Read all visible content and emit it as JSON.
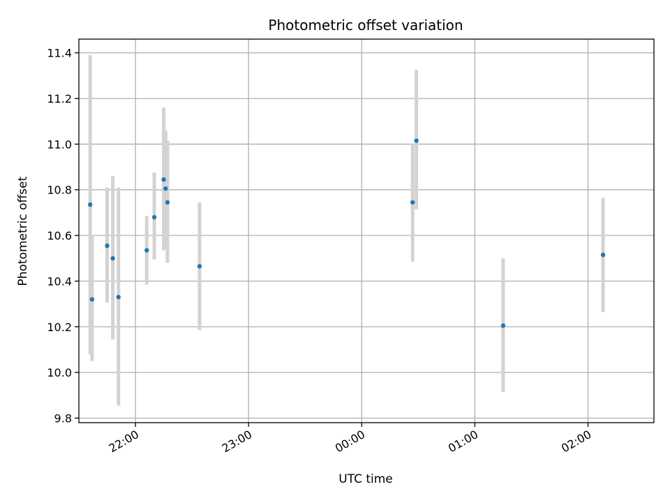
{
  "chart_data": {
    "type": "scatter",
    "title": "Photometric offset variation",
    "xlabel": "UTC time",
    "ylabel": "Photometric offset",
    "x_axis_kind": "time",
    "xlim": [
      "21:30",
      "02:35"
    ],
    "ylim": [
      9.78,
      11.46
    ],
    "x_ticks": [
      "22:00",
      "23:00",
      "00:00",
      "01:00",
      "02:00"
    ],
    "y_ticks": [
      9.8,
      10.0,
      10.2,
      10.4,
      10.6,
      10.8,
      11.0,
      11.2,
      11.4
    ],
    "grid": true,
    "legend": "none",
    "point_color": "#1f77b4",
    "errorbar_color": "#d3d3d3",
    "points": [
      {
        "x": "21:36",
        "y": 10.735,
        "ylow": 10.08,
        "yhigh": 11.39
      },
      {
        "x": "21:37",
        "y": 10.32,
        "ylow": 10.05,
        "yhigh": 10.6
      },
      {
        "x": "21:45",
        "y": 10.555,
        "ylow": 10.305,
        "yhigh": 10.81
      },
      {
        "x": "21:48",
        "y": 10.5,
        "ylow": 10.145,
        "yhigh": 10.86
      },
      {
        "x": "21:51",
        "y": 10.33,
        "ylow": 9.855,
        "yhigh": 10.81
      },
      {
        "x": "22:06",
        "y": 10.535,
        "ylow": 10.385,
        "yhigh": 10.685
      },
      {
        "x": "22:10",
        "y": 10.68,
        "ylow": 10.495,
        "yhigh": 10.875
      },
      {
        "x": "22:15",
        "y": 10.845,
        "ylow": 10.535,
        "yhigh": 11.16
      },
      {
        "x": "22:16",
        "y": 10.805,
        "ylow": 10.545,
        "yhigh": 11.06
      },
      {
        "x": "22:17",
        "y": 10.745,
        "ylow": 10.48,
        "yhigh": 11.015
      },
      {
        "x": "22:34",
        "y": 10.465,
        "ylow": 10.185,
        "yhigh": 10.745
      },
      {
        "x": "00:27",
        "y": 10.745,
        "ylow": 10.485,
        "yhigh": 11.0
      },
      {
        "x": "00:29",
        "y": 11.015,
        "ylow": 10.715,
        "yhigh": 11.325
      },
      {
        "x": "01:15",
        "y": 10.205,
        "ylow": 9.915,
        "yhigh": 10.5
      },
      {
        "x": "02:08",
        "y": 10.515,
        "ylow": 10.265,
        "yhigh": 10.765
      }
    ]
  }
}
